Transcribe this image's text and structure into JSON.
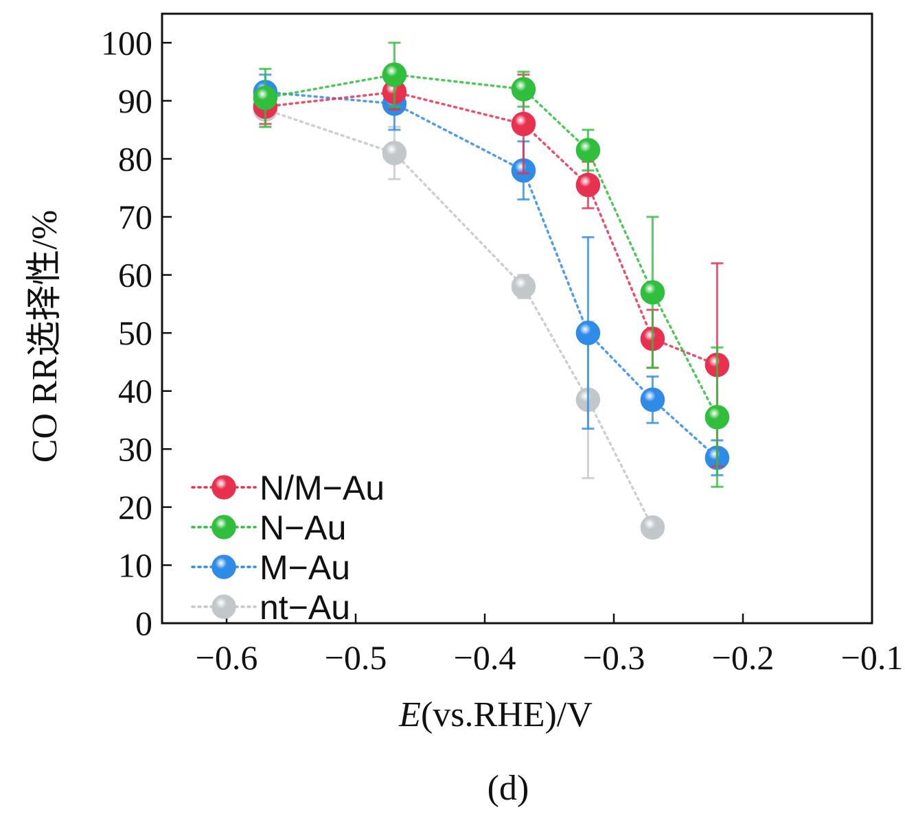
{
  "chart_data": {
    "type": "scatter",
    "title": "",
    "xlabel_italic": "E",
    "xlabel_rest": "(vs.RHE)/V",
    "ylabel": "CO RR选择性/%",
    "panel_label": "(d)",
    "xlim": [
      -0.65,
      -0.1
    ],
    "ylim": [
      0,
      105
    ],
    "x_ticks": [
      -0.6,
      -0.5,
      -0.4,
      -0.3,
      -0.2,
      -0.1
    ],
    "x_tick_labels": [
      "−0.6",
      "−0.5",
      "−0.4",
      "−0.3",
      "−0.2",
      "−0.1"
    ],
    "y_ticks": [
      0,
      10,
      20,
      30,
      40,
      50,
      60,
      70,
      80,
      90,
      100
    ],
    "y_tick_labels": [
      "0",
      "10",
      "20",
      "30",
      "40",
      "50",
      "60",
      "70",
      "80",
      "90",
      "100"
    ],
    "grid": false,
    "legend_position": "bottom-left",
    "series": [
      {
        "name": "N/M−Au",
        "color": "#e8304f",
        "x": [
          -0.57,
          -0.47,
          -0.37,
          -0.32,
          -0.27,
          -0.22
        ],
        "y": [
          89,
          91.5,
          86,
          75.5,
          49,
          44.5
        ],
        "err": [
          3,
          3,
          8.5,
          4,
          5,
          17.5
        ]
      },
      {
        "name": "N−Au",
        "color": "#2fbf3c",
        "x": [
          -0.57,
          -0.47,
          -0.37,
          -0.32,
          -0.27,
          -0.22
        ],
        "y": [
          90.5,
          94.5,
          92,
          81.5,
          57,
          35.5
        ],
        "err": [
          5,
          5.5,
          3,
          3.5,
          13,
          12
        ]
      },
      {
        "name": "M−Au",
        "color": "#2f8be8",
        "x": [
          -0.57,
          -0.47,
          -0.37,
          -0.32,
          -0.27,
          -0.22
        ],
        "y": [
          91.5,
          89.5,
          78,
          50,
          38.5,
          28.5
        ],
        "err": [
          3,
          4.5,
          5,
          16.5,
          4,
          3
        ]
      },
      {
        "name": "nt−Au",
        "color": "#c2c7c9",
        "x": [
          -0.57,
          -0.47,
          -0.37,
          -0.32,
          -0.27
        ],
        "y": [
          88.5,
          81,
          58,
          38.5,
          16.5
        ],
        "err": [
          3,
          4.5,
          2,
          13.5,
          1.5
        ]
      }
    ]
  }
}
